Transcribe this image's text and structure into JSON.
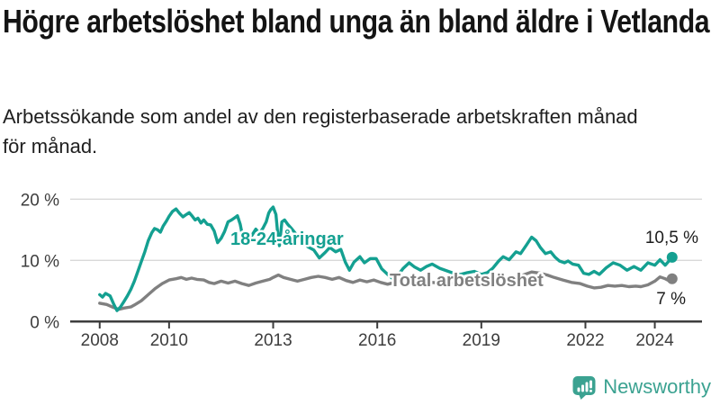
{
  "header": {
    "title": "Högre arbetslöshet bland unga än bland äldre i Vetlanda",
    "subtitle_line1": "Arbetssökande som andel av den registerbaserade arbetskraften månad",
    "subtitle_line2": "för månad."
  },
  "footer": {
    "brand": "Newsworthy",
    "brand_color": "#3BA291",
    "logo_icon": "bar-chart-speech-bubble-icon"
  },
  "chart_data": {
    "type": "line",
    "title": "Högre arbetslöshet bland unga än bland äldre i Vetlanda",
    "xlabel": "",
    "ylabel": "Arbetssökande som andel av den registerbaserade arbetskraften",
    "x_unit": "year, monthly values",
    "ylim": [
      0,
      20
    ],
    "grid": "horizontal",
    "x_ticks": [
      2008,
      2010,
      2013,
      2016,
      2019,
      2022,
      2024
    ],
    "x_tick_labels": [
      "2008",
      "2010",
      "2013",
      "2016",
      "2019",
      "2022",
      "2024"
    ],
    "y_ticks": [
      {
        "value": 0,
        "label": "0 %"
      },
      {
        "value": 10,
        "label": "10 %"
      },
      {
        "value": 20,
        "label": "20 %"
      }
    ],
    "colors": {
      "youth": "#14A091",
      "total": "#808080",
      "grid": "#d9d9d9",
      "axis": "#3d3d3d"
    },
    "series": [
      {
        "id": "youth",
        "name": "18-24-åringar",
        "label_text": "18-24-åringar",
        "color": "#14A091",
        "end_label": "10,5 %",
        "end_value": 10.5,
        "points": [
          [
            2008.0,
            4.4
          ],
          [
            2008.08,
            4.0
          ],
          [
            2008.17,
            4.6
          ],
          [
            2008.3,
            4.2
          ],
          [
            2008.4,
            2.9
          ],
          [
            2008.5,
            1.8
          ],
          [
            2008.6,
            2.4
          ],
          [
            2008.7,
            3.3
          ],
          [
            2008.8,
            4.2
          ],
          [
            2008.9,
            5.3
          ],
          [
            2009.0,
            6.6
          ],
          [
            2009.1,
            8.2
          ],
          [
            2009.2,
            9.8
          ],
          [
            2009.3,
            11.4
          ],
          [
            2009.4,
            13.2
          ],
          [
            2009.5,
            14.5
          ],
          [
            2009.58,
            15.2
          ],
          [
            2009.67,
            15.0
          ],
          [
            2009.75,
            14.6
          ],
          [
            2009.83,
            15.6
          ],
          [
            2009.92,
            16.4
          ],
          [
            2010.0,
            17.2
          ],
          [
            2010.1,
            18.0
          ],
          [
            2010.2,
            18.4
          ],
          [
            2010.3,
            17.7
          ],
          [
            2010.4,
            17.1
          ],
          [
            2010.5,
            17.5
          ],
          [
            2010.58,
            17.8
          ],
          [
            2010.67,
            17.2
          ],
          [
            2010.75,
            16.6
          ],
          [
            2010.83,
            16.9
          ],
          [
            2010.92,
            16.1
          ],
          [
            2011.0,
            16.6
          ],
          [
            2011.1,
            15.9
          ],
          [
            2011.2,
            15.8
          ],
          [
            2011.3,
            14.8
          ],
          [
            2011.4,
            12.9
          ],
          [
            2011.5,
            13.6
          ],
          [
            2011.6,
            14.7
          ],
          [
            2011.7,
            16.3
          ],
          [
            2011.8,
            16.6
          ],
          [
            2011.9,
            17.0
          ],
          [
            2011.97,
            17.3
          ],
          [
            2012.05,
            15.9
          ],
          [
            2012.13,
            13.6
          ],
          [
            2012.2,
            12.6
          ],
          [
            2012.3,
            13.3
          ],
          [
            2012.4,
            14.2
          ],
          [
            2012.5,
            15.1
          ],
          [
            2012.6,
            14.4
          ],
          [
            2012.7,
            15.2
          ],
          [
            2012.8,
            16.3
          ],
          [
            2012.87,
            17.7
          ],
          [
            2012.93,
            18.3
          ],
          [
            2013.0,
            18.7
          ],
          [
            2013.08,
            17.5
          ],
          [
            2013.13,
            14.5
          ],
          [
            2013.18,
            12.4
          ],
          [
            2013.25,
            16.3
          ],
          [
            2013.33,
            16.6
          ],
          [
            2013.42,
            15.9
          ],
          [
            2013.53,
            15.2
          ],
          [
            2013.67,
            14.2
          ],
          [
            2013.83,
            13.1
          ],
          [
            2014.0,
            12.2
          ],
          [
            2014.17,
            11.7
          ],
          [
            2014.33,
            10.4
          ],
          [
            2014.5,
            11.3
          ],
          [
            2014.63,
            12.1
          ],
          [
            2014.8,
            11.4
          ],
          [
            2014.95,
            11.8
          ],
          [
            2015.08,
            9.7
          ],
          [
            2015.2,
            8.4
          ],
          [
            2015.33,
            9.7
          ],
          [
            2015.5,
            10.6
          ],
          [
            2015.63,
            9.6
          ],
          [
            2015.8,
            10.3
          ],
          [
            2015.97,
            10.3
          ],
          [
            2016.13,
            8.6
          ],
          [
            2016.3,
            7.7
          ],
          [
            2016.45,
            7.0
          ],
          [
            2016.6,
            7.6
          ],
          [
            2016.75,
            8.7
          ],
          [
            2016.92,
            9.6
          ],
          [
            2017.08,
            8.9
          ],
          [
            2017.25,
            8.4
          ],
          [
            2017.42,
            9.0
          ],
          [
            2017.58,
            9.4
          ],
          [
            2017.8,
            8.7
          ],
          [
            2018.0,
            8.3
          ],
          [
            2018.2,
            7.9
          ],
          [
            2018.4,
            7.7
          ],
          [
            2018.6,
            8.0
          ],
          [
            2018.8,
            8.2
          ],
          [
            2019.0,
            7.7
          ],
          [
            2019.17,
            8.0
          ],
          [
            2019.33,
            8.7
          ],
          [
            2019.5,
            9.9
          ],
          [
            2019.63,
            10.6
          ],
          [
            2019.8,
            10.1
          ],
          [
            2020.0,
            11.4
          ],
          [
            2020.13,
            11.1
          ],
          [
            2020.3,
            12.5
          ],
          [
            2020.45,
            13.8
          ],
          [
            2020.58,
            13.2
          ],
          [
            2020.7,
            12.1
          ],
          [
            2020.85,
            11.1
          ],
          [
            2021.0,
            11.4
          ],
          [
            2021.13,
            10.5
          ],
          [
            2021.25,
            9.9
          ],
          [
            2021.4,
            9.6
          ],
          [
            2021.5,
            9.9
          ],
          [
            2021.63,
            9.4
          ],
          [
            2021.8,
            9.2
          ],
          [
            2021.95,
            7.9
          ],
          [
            2022.1,
            7.7
          ],
          [
            2022.25,
            8.2
          ],
          [
            2022.4,
            7.7
          ],
          [
            2022.6,
            8.8
          ],
          [
            2022.8,
            9.6
          ],
          [
            2023.0,
            9.2
          ],
          [
            2023.2,
            8.4
          ],
          [
            2023.4,
            9.0
          ],
          [
            2023.6,
            8.4
          ],
          [
            2023.8,
            9.6
          ],
          [
            2024.0,
            9.2
          ],
          [
            2024.15,
            10.1
          ],
          [
            2024.3,
            9.2
          ],
          [
            2024.5,
            10.5
          ]
        ]
      },
      {
        "id": "total",
        "name": "Total arbetslöshet",
        "label_text": "Total arbetslöshet",
        "color": "#808080",
        "end_label": "7 %",
        "end_value": 7.0,
        "points": [
          [
            2008.0,
            3.0
          ],
          [
            2008.2,
            2.8
          ],
          [
            2008.4,
            2.3
          ],
          [
            2008.55,
            2.0
          ],
          [
            2008.7,
            2.2
          ],
          [
            2008.9,
            2.4
          ],
          [
            2009.0,
            2.7
          ],
          [
            2009.2,
            3.4
          ],
          [
            2009.4,
            4.4
          ],
          [
            2009.6,
            5.4
          ],
          [
            2009.8,
            6.2
          ],
          [
            2010.0,
            6.8
          ],
          [
            2010.2,
            7.0
          ],
          [
            2010.35,
            7.2
          ],
          [
            2010.5,
            6.9
          ],
          [
            2010.65,
            7.1
          ],
          [
            2010.8,
            6.9
          ],
          [
            2011.0,
            6.8
          ],
          [
            2011.15,
            6.4
          ],
          [
            2011.3,
            6.2
          ],
          [
            2011.5,
            6.6
          ],
          [
            2011.7,
            6.3
          ],
          [
            2011.9,
            6.6
          ],
          [
            2012.1,
            6.2
          ],
          [
            2012.3,
            5.9
          ],
          [
            2012.5,
            6.3
          ],
          [
            2012.7,
            6.6
          ],
          [
            2012.9,
            6.9
          ],
          [
            2013.0,
            7.2
          ],
          [
            2013.15,
            7.6
          ],
          [
            2013.3,
            7.2
          ],
          [
            2013.5,
            6.9
          ],
          [
            2013.7,
            6.6
          ],
          [
            2013.9,
            6.9
          ],
          [
            2014.1,
            7.2
          ],
          [
            2014.3,
            7.4
          ],
          [
            2014.5,
            7.2
          ],
          [
            2014.7,
            6.9
          ],
          [
            2014.9,
            7.2
          ],
          [
            2015.1,
            6.7
          ],
          [
            2015.3,
            6.4
          ],
          [
            2015.5,
            6.8
          ],
          [
            2015.7,
            6.5
          ],
          [
            2015.9,
            6.8
          ],
          [
            2016.1,
            6.4
          ],
          [
            2016.3,
            6.1
          ],
          [
            2016.5,
            6.4
          ],
          [
            2016.7,
            6.7
          ],
          [
            2016.9,
            6.6
          ],
          [
            2017.1,
            6.4
          ],
          [
            2017.35,
            6.2
          ],
          [
            2017.6,
            6.4
          ],
          [
            2017.85,
            6.2
          ],
          [
            2018.1,
            6.3
          ],
          [
            2018.4,
            6.1
          ],
          [
            2018.7,
            6.2
          ],
          [
            2019.0,
            6.3
          ],
          [
            2019.3,
            6.4
          ],
          [
            2019.6,
            6.6
          ],
          [
            2019.9,
            6.9
          ],
          [
            2020.2,
            7.6
          ],
          [
            2020.45,
            8.1
          ],
          [
            2020.7,
            7.9
          ],
          [
            2020.9,
            7.6
          ],
          [
            2021.1,
            7.2
          ],
          [
            2021.35,
            6.8
          ],
          [
            2021.6,
            6.4
          ],
          [
            2021.85,
            6.2
          ],
          [
            2022.05,
            5.8
          ],
          [
            2022.25,
            5.5
          ],
          [
            2022.45,
            5.6
          ],
          [
            2022.65,
            5.9
          ],
          [
            2022.85,
            5.8
          ],
          [
            2023.05,
            5.9
          ],
          [
            2023.25,
            5.7
          ],
          [
            2023.45,
            5.8
          ],
          [
            2023.6,
            5.7
          ],
          [
            2023.8,
            6.0
          ],
          [
            2024.0,
            6.6
          ],
          [
            2024.15,
            7.3
          ],
          [
            2024.3,
            7.0
          ],
          [
            2024.4,
            6.7
          ],
          [
            2024.5,
            7.0
          ]
        ]
      }
    ]
  }
}
